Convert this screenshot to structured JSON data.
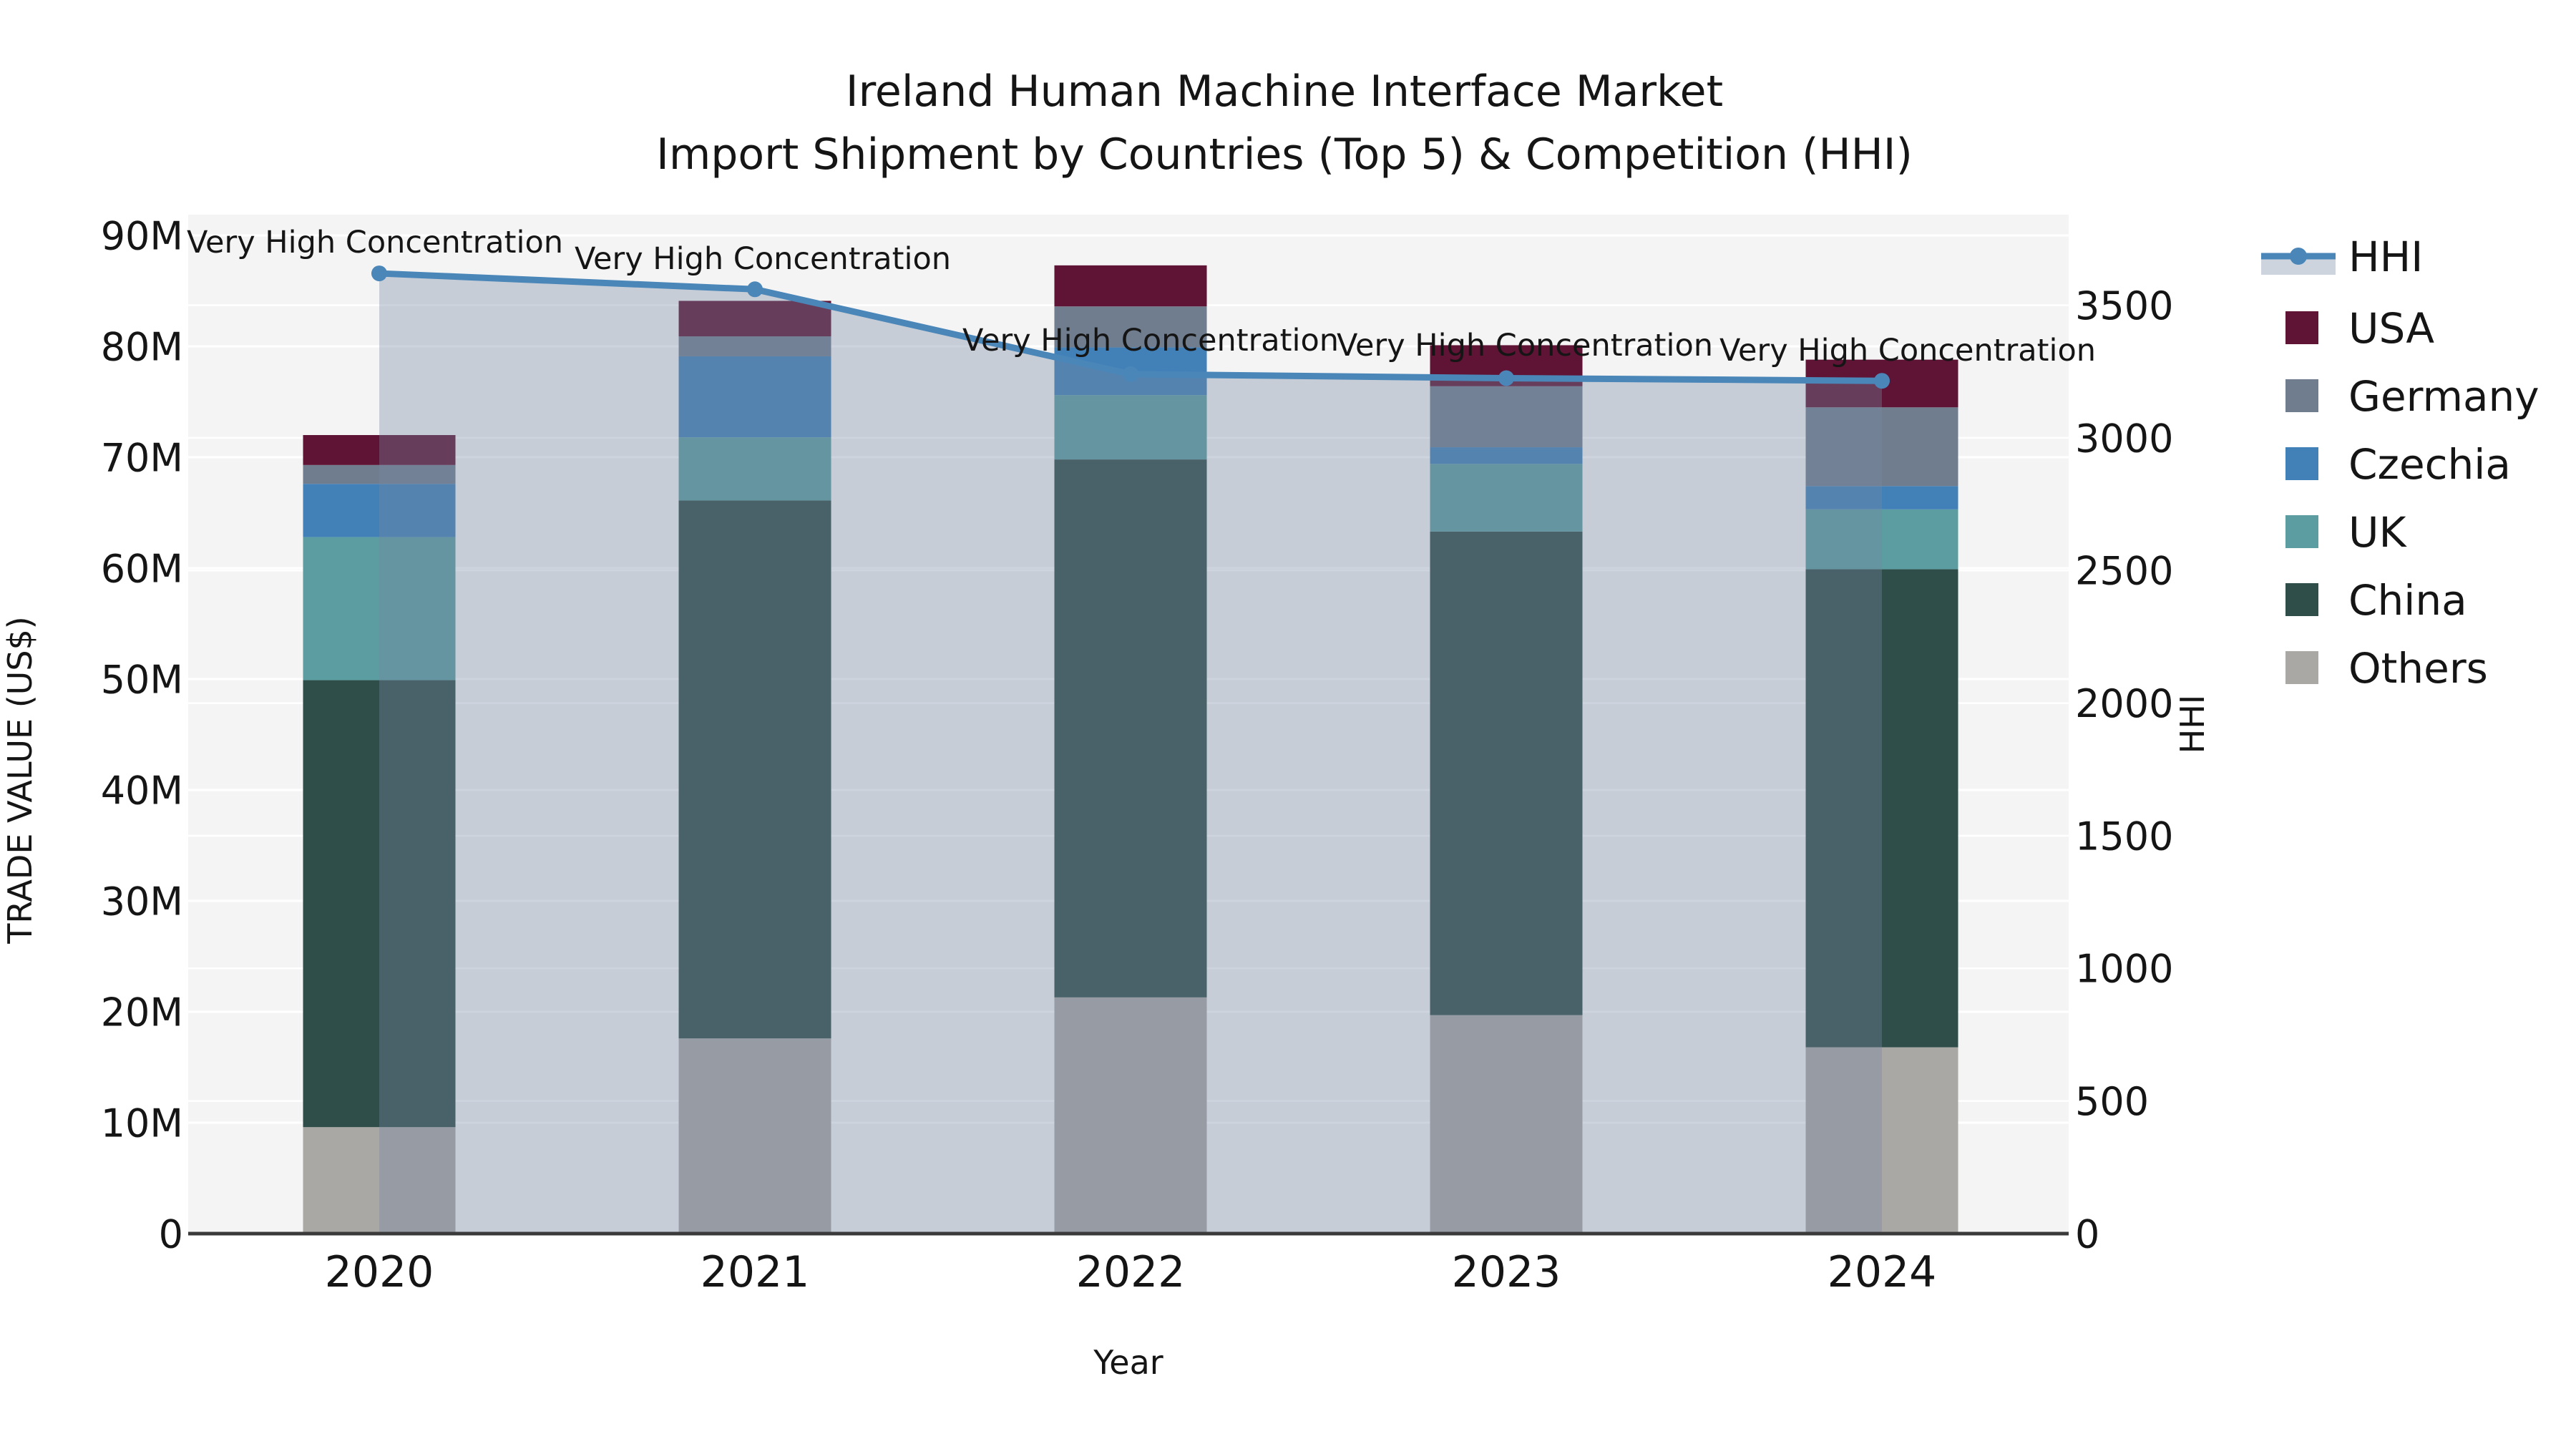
{
  "title": {
    "line1": "Ireland Human Machine Interface Market",
    "line2": "Import Shipment by Countries (Top 5) & Competition (HHI)"
  },
  "axes": {
    "x": {
      "label": "Year",
      "tick_labels": [
        "2020",
        "2021",
        "2022",
        "2023",
        "2024"
      ]
    },
    "y_left": {
      "label": "TRADE VALUE (US$)",
      "tick_labels": [
        "0",
        "10M",
        "20M",
        "30M",
        "40M",
        "50M",
        "60M",
        "70M",
        "80M",
        "90M"
      ],
      "tick_values_millions": [
        0,
        10,
        20,
        30,
        40,
        50,
        60,
        70,
        80,
        90
      ]
    },
    "y_right": {
      "label": "HHI",
      "tick_labels": [
        "0",
        "500",
        "1000",
        "1500",
        "2000",
        "2500",
        "3000",
        "3500"
      ],
      "tick_values": [
        0,
        500,
        1000,
        1500,
        2000,
        2500,
        3000,
        3500
      ]
    }
  },
  "legend": {
    "items": [
      {
        "label": "HHI",
        "type": "line",
        "color": "#4a86b8"
      },
      {
        "label": "USA",
        "type": "swatch",
        "color": "#5f1335"
      },
      {
        "label": "Germany",
        "type": "swatch",
        "color": "#6f7d8e"
      },
      {
        "label": "Czechia",
        "type": "swatch",
        "color": "#4280b8"
      },
      {
        "label": "UK",
        "type": "swatch",
        "color": "#5b9da0"
      },
      {
        "label": "China",
        "type": "swatch",
        "color": "#2f4d49"
      },
      {
        "label": "Others",
        "type": "swatch",
        "color": "#a9a8a4"
      }
    ]
  },
  "annotations": [
    {
      "year": "2020",
      "text": "Very High Concentration"
    },
    {
      "year": "2021",
      "text": "Very High Concentration"
    },
    {
      "year": "2022",
      "text": "Very High Concentration"
    },
    {
      "year": "2023",
      "text": "Very High Concentration"
    },
    {
      "year": "2024",
      "text": "Very High Concentration"
    }
  ],
  "colors": {
    "plot_background": "#f4f4f5",
    "gridline": "#ffffff",
    "axis_line": "#3a3a3a",
    "hhi_line": "#4a86b8",
    "hhi_area_fill": "rgba(120,136,164,0.36)",
    "text": "#151515"
  },
  "chart_data": {
    "type": "combo: stacked-bar + line-with-area",
    "title": "Ireland Human Machine Interface Market — Import Shipment by Countries (Top 5) & Competition (HHI)",
    "xlabel": "Year",
    "ylabel_left": "TRADE VALUE (US$)",
    "ylabel_right": "HHI",
    "categories": [
      "2020",
      "2021",
      "2022",
      "2023",
      "2024"
    ],
    "bar_unit": "million US$",
    "stack_order": "bottom to top",
    "series": [
      {
        "name": "Others",
        "color": "#a9a8a4",
        "values": [
          9.6,
          17.6,
          21.3,
          19.7,
          16.8
        ]
      },
      {
        "name": "China",
        "color": "#2f4d49",
        "values": [
          40.3,
          48.5,
          48.5,
          43.6,
          43.1
        ]
      },
      {
        "name": "UK",
        "color": "#5b9da0",
        "values": [
          12.9,
          5.7,
          5.8,
          6.1,
          5.4
        ]
      },
      {
        "name": "Czechia",
        "color": "#4280b8",
        "values": [
          4.8,
          7.3,
          4.3,
          1.5,
          2.1
        ]
      },
      {
        "name": "Germany",
        "color": "#6f7d8e",
        "values": [
          1.7,
          1.8,
          3.7,
          5.5,
          7.1
        ]
      },
      {
        "name": "USA",
        "color": "#5f1335",
        "values": [
          2.7,
          3.2,
          3.7,
          3.7,
          4.3
        ]
      }
    ],
    "bar_totals_millions": [
      72.0,
      84.1,
      87.3,
      80.1,
      78.8
    ],
    "line_series": {
      "name": "HHI",
      "axis": "right",
      "values": [
        3620,
        3560,
        3240,
        3225,
        3215
      ],
      "fill_to_zero": true,
      "marker": "circle"
    },
    "ylim_left_millions": [
      0,
      92
    ],
    "ylim_right": [
      0,
      3840
    ],
    "grid": true,
    "legend_position": "right"
  }
}
